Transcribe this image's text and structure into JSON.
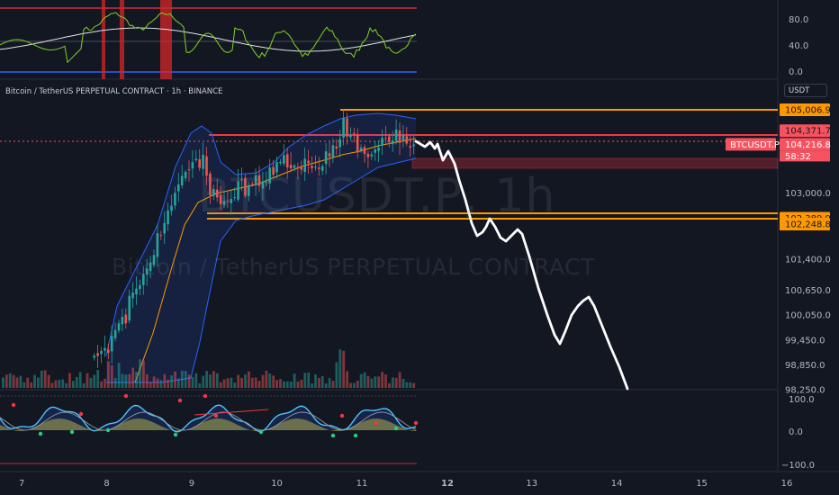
{
  "pane_title": "Bitcoin / TetherUS PERPETUAL CONTRACT · 1h · BINANCE",
  "unit_button": "USDT",
  "watermark": {
    "line1": "BTCUSDT.P, 1h",
    "line2": "Bitcoin / TetherUS PERPETUAL CONTRACT"
  },
  "price_axis": {
    "ticks": [
      {
        "label": "103,000.0",
        "value": 103000
      },
      {
        "label": "101,400.0",
        "value": 101400
      },
      {
        "label": "100,650.0",
        "value": 100650
      },
      {
        "label": "100,050.0",
        "value": 100050
      },
      {
        "label": "99,450.0",
        "value": 99450
      },
      {
        "label": "98,850.0",
        "value": 98850
      },
      {
        "label": "98,250.0",
        "value": 98250
      }
    ]
  },
  "price_tags": [
    {
      "label": "105,006.9",
      "bg": "#ff9800",
      "fg": "#131722",
      "value": 105006.9
    },
    {
      "label": "104,371.7",
      "bg": "#f7525f",
      "fg": "#131722",
      "value": 104371.7
    },
    {
      "label": "104,216.8",
      "bg": "#f7525f",
      "fg": "#ffffff",
      "value": 104216.8
    },
    {
      "label": "102,389.9",
      "bg": "#ff9800",
      "fg": "#131722",
      "value": 102389.9
    },
    {
      "label": "102,248.8",
      "bg": "#ff9800",
      "fg": "#131722",
      "value": 102248.8
    }
  ],
  "symbol_tag": {
    "label": "BTCUSDT.P",
    "bg": "#f7525f"
  },
  "countdown": "58:32",
  "rsi_axis": [
    "80.0",
    "40.0",
    "0.0"
  ],
  "osc_axis": [
    "100.0",
    "0.0",
    "−100.0"
  ],
  "time_axis": [
    "7",
    "8",
    "9",
    "10",
    "11",
    "12",
    "13",
    "14",
    "15",
    "16"
  ],
  "colors": {
    "background": "#131722",
    "up_candle": "#26a69a",
    "down_candle": "#ef5350",
    "bollinger": "#2962ff",
    "level_line": "#ff9800",
    "resistance": "#f23645",
    "projection": "#ffffff"
  }
}
